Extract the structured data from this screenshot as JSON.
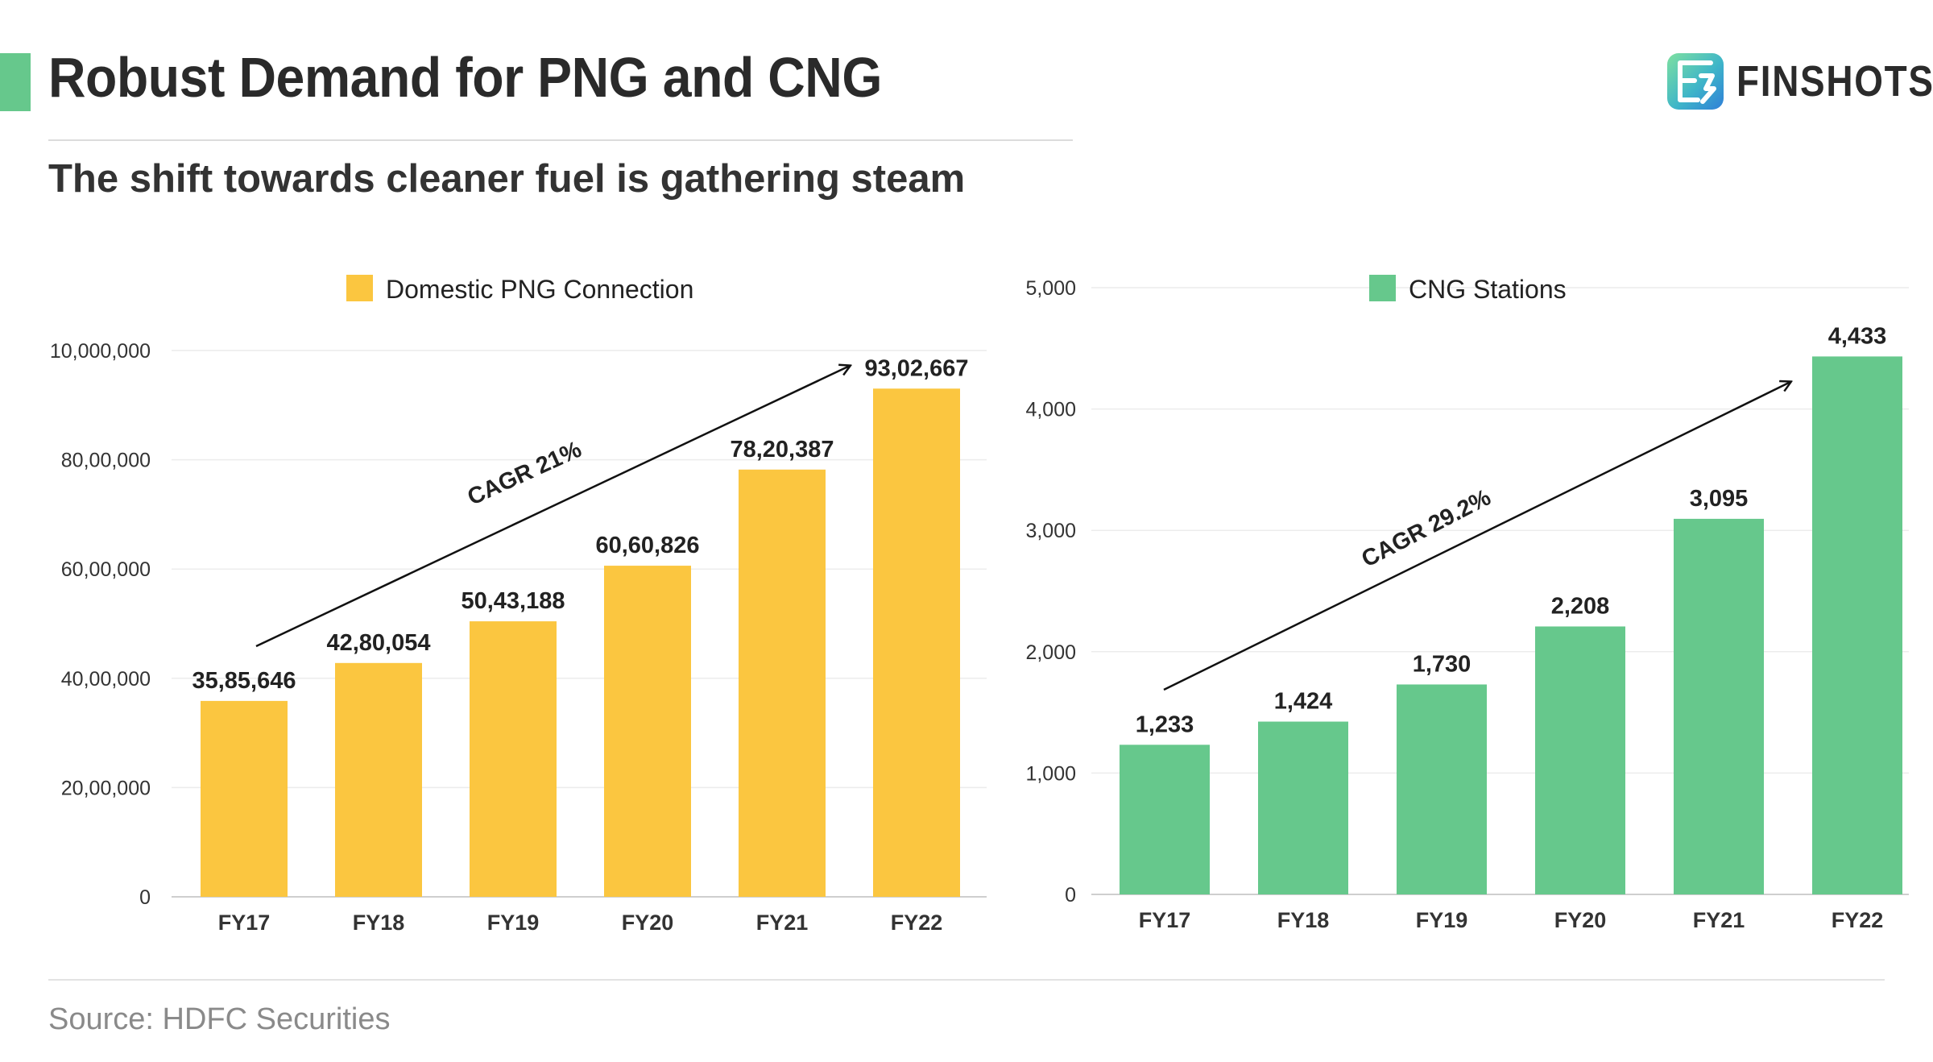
{
  "header": {
    "title": "Robust Demand for PNG and CNG",
    "subtitle": "The shift towards cleaner fuel is gathering steam",
    "brand": "FINSHOTS"
  },
  "footer": {
    "source": "Source: HDFC Securities"
  },
  "colors": {
    "accent": "#66c88c",
    "png_bar": "#fbc640",
    "cng_bar": "#66c88c"
  },
  "chart_data": [
    {
      "type": "bar",
      "legend": "Domestic PNG Connection",
      "categories": [
        "FY17",
        "FY18",
        "FY19",
        "FY20",
        "FY21",
        "FY22"
      ],
      "values": [
        3585646,
        4280054,
        5043188,
        6060826,
        7820387,
        9302667
      ],
      "data_labels": [
        "35,85,646",
        "42,80,054",
        "50,43,188",
        "60,60,826",
        "78,20,387",
        "93,02,667"
      ],
      "ylim": [
        0,
        10000000
      ],
      "yticks": [
        0,
        2000000,
        4000000,
        6000000,
        8000000,
        10000000
      ],
      "ytick_labels": [
        "0",
        "20,00,000",
        "40,00,000",
        "60,00,000",
        "80,00,000",
        "10,000,000"
      ],
      "annotation": "CAGR 21%",
      "color": "#fbc640",
      "grid": true,
      "legend_position": "top-center"
    },
    {
      "type": "bar",
      "legend": "CNG Stations",
      "categories": [
        "FY17",
        "FY18",
        "FY19",
        "FY20",
        "FY21",
        "FY22"
      ],
      "values": [
        1233,
        1424,
        1730,
        2208,
        3095,
        4433
      ],
      "data_labels": [
        "1,233",
        "1,424",
        "1,730",
        "2,208",
        "3,095",
        "4,433"
      ],
      "ylim": [
        0,
        5000
      ],
      "yticks": [
        0,
        1000,
        2000,
        3000,
        4000,
        5000
      ],
      "ytick_labels": [
        "0",
        "1,000",
        "2,000",
        "3,000",
        "4,000",
        "5,000"
      ],
      "annotation": "CAGR 29.2%",
      "color": "#66c88c",
      "grid": true,
      "legend_position": "top-center"
    }
  ]
}
